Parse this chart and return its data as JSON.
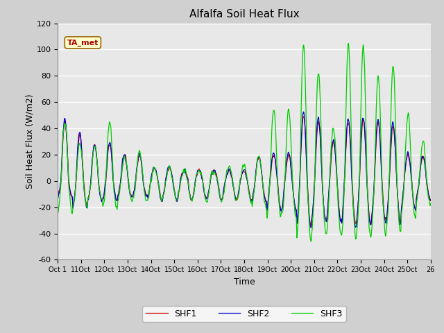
{
  "title": "Alfalfa Soil Heat Flux",
  "xlabel": "Time",
  "ylabel": "Soil Heat Flux (W/m2)",
  "ylim": [
    -60,
    120
  ],
  "yticks": [
    -60,
    -40,
    -20,
    0,
    20,
    40,
    60,
    80,
    100,
    120
  ],
  "xtick_labels": [
    "Oct 1",
    "11Oct",
    "12Oct",
    "13Oct",
    "14Oct",
    "15Oct",
    "16Oct",
    "17Oct",
    "18Oct",
    "19Oct",
    "20Oct",
    "21Oct",
    "22Oct",
    "23Oct",
    "24Oct",
    "25Oct",
    "26"
  ],
  "colors": {
    "SHF1": "#cc0000",
    "SHF2": "#0000cc",
    "SHF3": "#00cc00"
  },
  "fig_facecolor": "#d0d0d0",
  "ax_facecolor": "#e8e8e8",
  "annotation": "TA_met",
  "annotation_color": "#aa0000",
  "annotation_bg": "#ffffcc",
  "annotation_edge": "#996600",
  "grid_color": "#ffffff",
  "legend_entries": [
    "SHF1",
    "SHF2",
    "SHF3"
  ]
}
